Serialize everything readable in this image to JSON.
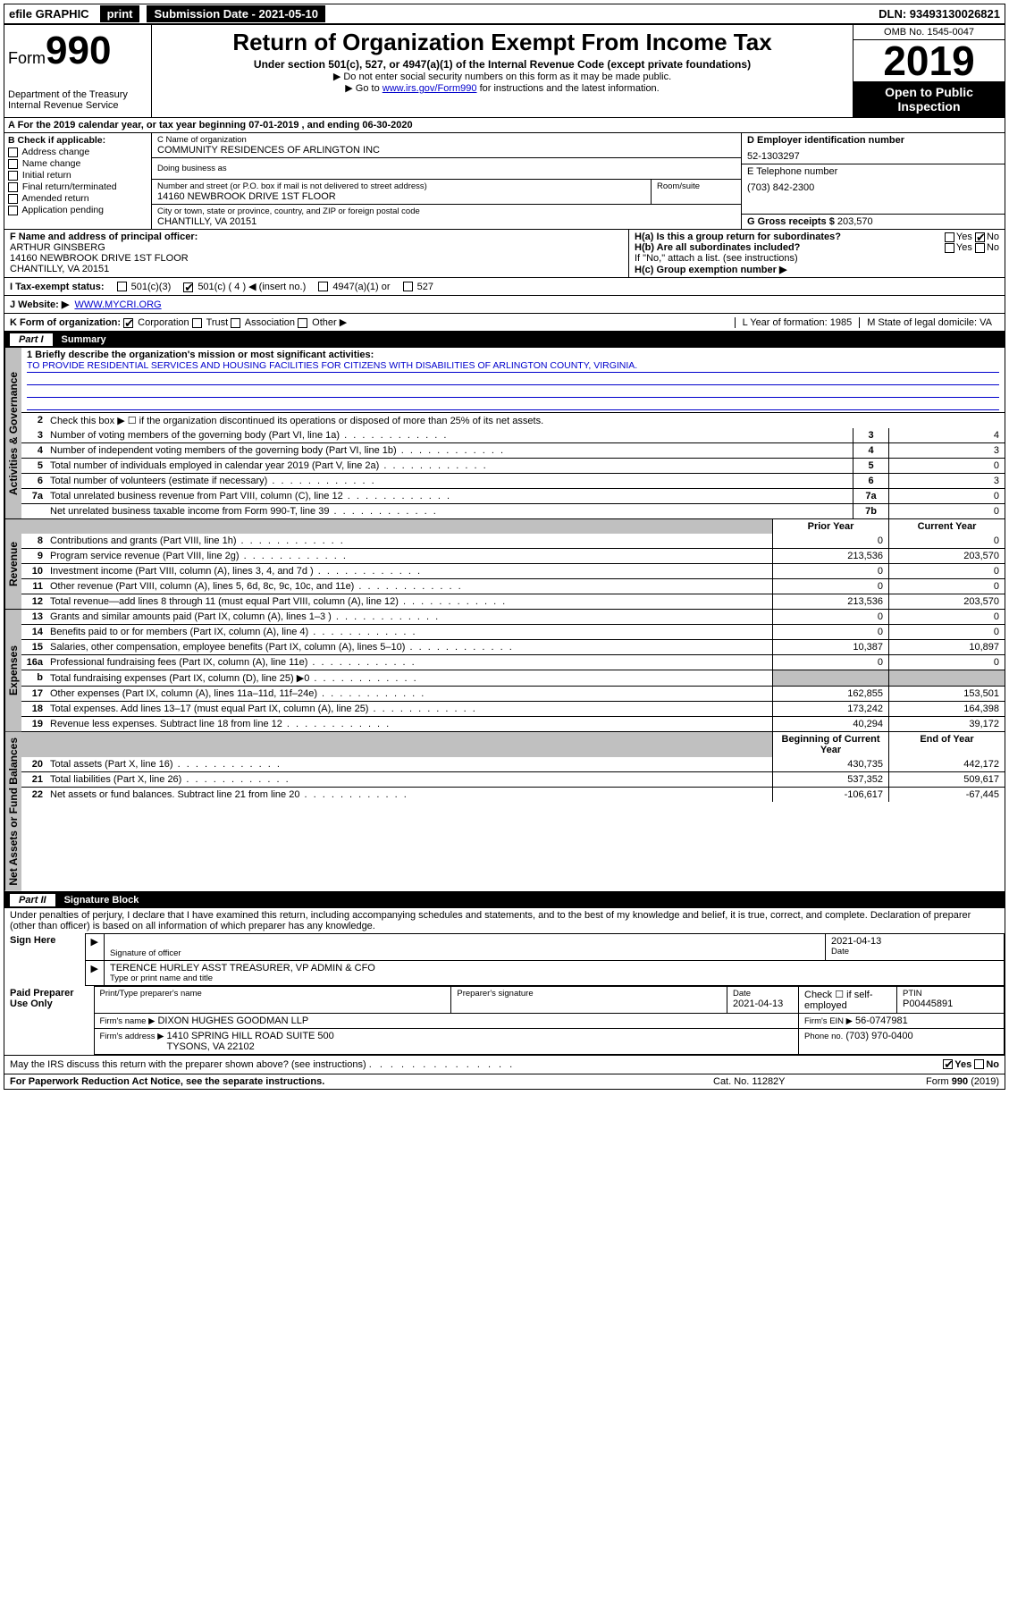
{
  "topbar": {
    "efile": "efile GRAPHIC",
    "print": "print",
    "subdate_label": "Submission Date - 2021-05-10",
    "dln": "DLN: 93493130026821"
  },
  "header": {
    "form_label": "Form",
    "form_num": "990",
    "dept": "Department of the Treasury\nInternal Revenue Service",
    "title": "Return of Organization Exempt From Income Tax",
    "subtitle": "Under section 501(c), 527, or 4947(a)(1) of the Internal Revenue Code (except private foundations)",
    "note1": "▶ Do not enter social security numbers on this form as it may be made public.",
    "note2_pre": "▶ Go to ",
    "note2_link": "www.irs.gov/Form990",
    "note2_post": " for instructions and the latest information.",
    "omb": "OMB No. 1545-0047",
    "year": "2019",
    "open": "Open to Public Inspection"
  },
  "row_a": "A For the 2019 calendar year, or tax year beginning 07-01-2019    , and ending 06-30-2020",
  "col_b": {
    "title": "B Check if applicable:",
    "opts": [
      "Address change",
      "Name change",
      "Initial return",
      "Final return/terminated",
      "Amended return",
      "Application pending"
    ]
  },
  "col_c": {
    "name_label": "C Name of organization",
    "name": "COMMUNITY RESIDENCES OF ARLINGTON INC",
    "dba_label": "Doing business as",
    "street_label": "Number and street (or P.O. box if mail is not delivered to street address)",
    "street": "14160 NEWBROOK DRIVE 1ST FLOOR",
    "room_label": "Room/suite",
    "city_label": "City or town, state or province, country, and ZIP or foreign postal code",
    "city": "CHANTILLY, VA  20151"
  },
  "col_d": {
    "label": "D Employer identification number",
    "val": "52-1303297"
  },
  "col_e": {
    "label": "E Telephone number",
    "val": "(703) 842-2300"
  },
  "col_g": {
    "label": "G Gross receipts $",
    "val": "203,570"
  },
  "col_f": {
    "label": "F  Name and address of principal officer:",
    "val": "ARTHUR GINSBERG\n14160 NEWBROOK DRIVE 1ST FLOOR\nCHANTILLY, VA  20151"
  },
  "col_h": {
    "ha": "H(a)  Is this a group return for subordinates?",
    "hb": "H(b)  Are all subordinates included?",
    "hb_note": "If \"No,\" attach a list. (see instructions)",
    "hc": "H(c)  Group exemption number ▶",
    "yes": "Yes",
    "no": "No"
  },
  "row_i": {
    "label": "I  Tax-exempt status:",
    "c3": "501(c)(3)",
    "c4": "501(c) ( 4 ) ◀ (insert no.)",
    "a1": "4947(a)(1) or",
    "s527": "527"
  },
  "row_j": {
    "label": "J   Website: ▶",
    "val": "WWW.MYCRI.ORG"
  },
  "row_k": {
    "label": "K Form of organization:",
    "corp": "Corporation",
    "trust": "Trust",
    "assoc": "Association",
    "other": "Other ▶",
    "l": "L Year of formation: 1985",
    "m": "M State of legal domicile: VA"
  },
  "part1": {
    "pn": "Part I",
    "title": "Summary"
  },
  "mission_label": "1  Briefly describe the organization's mission or most significant activities:",
  "mission": "TO PROVIDE RESIDENTIAL SERVICES AND HOUSING FACILITIES FOR CITIZENS WITH DISABILITIES OF ARLINGTON COUNTY, VIRGINIA.",
  "line2": "Check this box ▶ ☐  if the organization discontinued its operations or disposed of more than 25% of its net assets.",
  "sections": {
    "gov": "Activities & Governance",
    "rev": "Revenue",
    "exp": "Expenses",
    "net": "Net Assets or Fund Balances"
  },
  "col_headers": {
    "prior": "Prior Year",
    "current": "Current Year",
    "boy": "Beginning of Current Year",
    "eoy": "End of Year"
  },
  "lines_gov": [
    {
      "n": "3",
      "t": "Number of voting members of the governing body (Part VI, line 1a)",
      "c": "3",
      "v": "4"
    },
    {
      "n": "4",
      "t": "Number of independent voting members of the governing body (Part VI, line 1b)",
      "c": "4",
      "v": "3"
    },
    {
      "n": "5",
      "t": "Total number of individuals employed in calendar year 2019 (Part V, line 2a)",
      "c": "5",
      "v": "0"
    },
    {
      "n": "6",
      "t": "Total number of volunteers (estimate if necessary)",
      "c": "6",
      "v": "3"
    },
    {
      "n": "7a",
      "t": "Total unrelated business revenue from Part VIII, column (C), line 12",
      "c": "7a",
      "v": "0"
    },
    {
      "n": "",
      "t": "Net unrelated business taxable income from Form 990-T, line 39",
      "c": "7b",
      "v": "0"
    }
  ],
  "lines_rev": [
    {
      "n": "8",
      "t": "Contributions and grants (Part VIII, line 1h)",
      "p": "0",
      "c": "0"
    },
    {
      "n": "9",
      "t": "Program service revenue (Part VIII, line 2g)",
      "p": "213,536",
      "c": "203,570"
    },
    {
      "n": "10",
      "t": "Investment income (Part VIII, column (A), lines 3, 4, and 7d )",
      "p": "0",
      "c": "0"
    },
    {
      "n": "11",
      "t": "Other revenue (Part VIII, column (A), lines 5, 6d, 8c, 9c, 10c, and 11e)",
      "p": "0",
      "c": "0"
    },
    {
      "n": "12",
      "t": "Total revenue—add lines 8 through 11 (must equal Part VIII, column (A), line 12)",
      "p": "213,536",
      "c": "203,570"
    }
  ],
  "lines_exp": [
    {
      "n": "13",
      "t": "Grants and similar amounts paid (Part IX, column (A), lines 1–3 )",
      "p": "0",
      "c": "0"
    },
    {
      "n": "14",
      "t": "Benefits paid to or for members (Part IX, column (A), line 4)",
      "p": "0",
      "c": "0"
    },
    {
      "n": "15",
      "t": "Salaries, other compensation, employee benefits (Part IX, column (A), lines 5–10)",
      "p": "10,387",
      "c": "10,897"
    },
    {
      "n": "16a",
      "t": "Professional fundraising fees (Part IX, column (A), line 11e)",
      "p": "0",
      "c": "0"
    },
    {
      "n": "b",
      "t": "Total fundraising expenses (Part IX, column (D), line 25) ▶0",
      "p": "",
      "c": "",
      "shade": true
    },
    {
      "n": "17",
      "t": "Other expenses (Part IX, column (A), lines 11a–11d, 11f–24e)",
      "p": "162,855",
      "c": "153,501"
    },
    {
      "n": "18",
      "t": "Total expenses. Add lines 13–17 (must equal Part IX, column (A), line 25)",
      "p": "173,242",
      "c": "164,398"
    },
    {
      "n": "19",
      "t": "Revenue less expenses. Subtract line 18 from line 12",
      "p": "40,294",
      "c": "39,172"
    }
  ],
  "lines_net": [
    {
      "n": "20",
      "t": "Total assets (Part X, line 16)",
      "p": "430,735",
      "c": "442,172"
    },
    {
      "n": "21",
      "t": "Total liabilities (Part X, line 26)",
      "p": "537,352",
      "c": "509,617"
    },
    {
      "n": "22",
      "t": "Net assets or fund balances. Subtract line 21 from line 20",
      "p": "-106,617",
      "c": "-67,445"
    }
  ],
  "part2": {
    "pn": "Part II",
    "title": "Signature Block"
  },
  "penalties": "Under penalties of perjury, I declare that I have examined this return, including accompanying schedules and statements, and to the best of my knowledge and belief, it is true, correct, and complete. Declaration of preparer (other than officer) is based on all information of which preparer has any knowledge.",
  "sign": {
    "here": "Sign Here",
    "sig_label": "Signature of officer",
    "date": "2021-04-13",
    "date_label": "Date",
    "name": "TERENCE HURLEY  ASST TREASURER, VP ADMIN & CFO",
    "name_label": "Type or print name and title"
  },
  "paid": {
    "title": "Paid Preparer Use Only",
    "c1": "Print/Type preparer's name",
    "c2": "Preparer's signature",
    "c3": "Date",
    "c3v": "2021-04-13",
    "c4": "Check ☐ if self-employed",
    "c5": "PTIN",
    "c5v": "P00445891",
    "firm_label": "Firm's name    ▶",
    "firm": "DIXON HUGHES GOODMAN LLP",
    "ein_label": "Firm's EIN ▶",
    "ein": "56-0747981",
    "addr_label": "Firm's address ▶",
    "addr": "1410 SPRING HILL ROAD SUITE 500\nTYSONS, VA  22102",
    "phone_label": "Phone no.",
    "phone": "(703) 970-0400"
  },
  "discuss": "May the IRS discuss this return with the preparer shown above? (see instructions)",
  "footer": {
    "pra": "For Paperwork Reduction Act Notice, see the separate instructions.",
    "cat": "Cat. No. 11282Y",
    "form": "Form 990 (2019)"
  }
}
